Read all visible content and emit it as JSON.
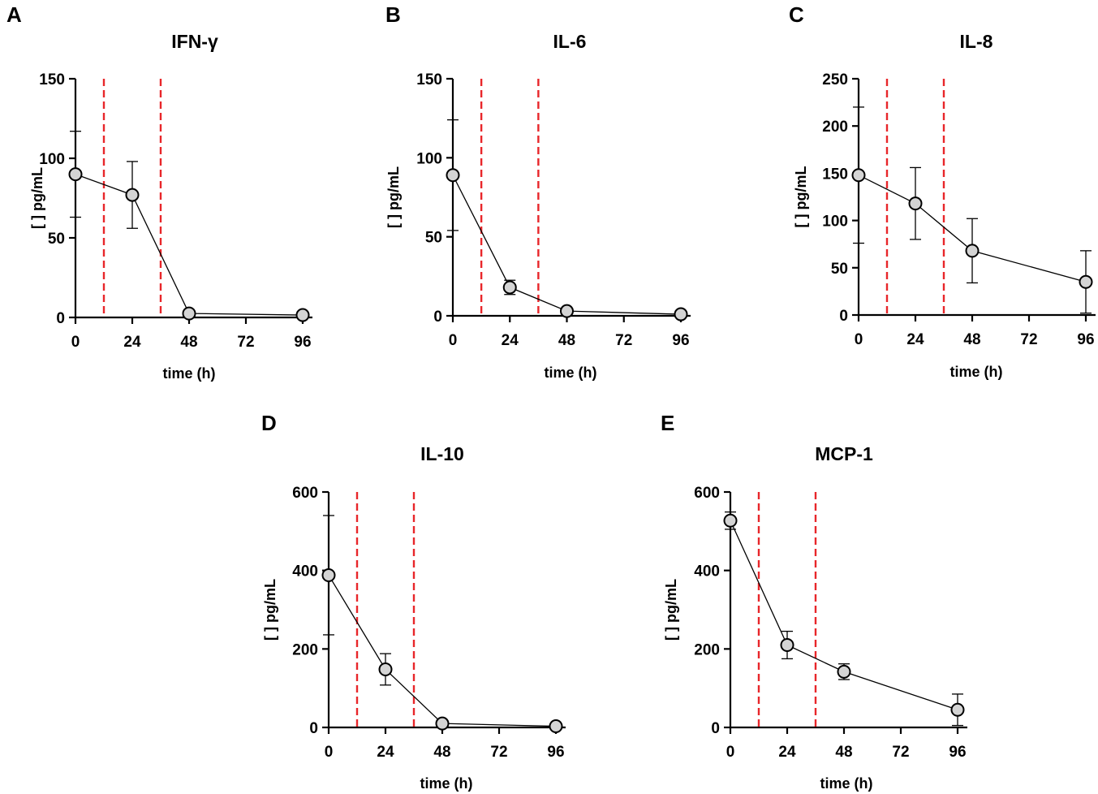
{
  "figure": {
    "colors": {
      "refline": "#e8262a",
      "marker_fill": "#d4d4d4",
      "ink": "#000000"
    }
  },
  "chart_data": [
    {
      "panel": "A",
      "type": "line",
      "title": "IFN-γ",
      "xlabel": "time (h)",
      "ylabel": "[ ] pg/mL",
      "xlim": [
        0,
        96
      ],
      "ylim": [
        0,
        150
      ],
      "xticks": [
        0,
        24,
        48,
        72,
        96
      ],
      "yticks": [
        0,
        50,
        100,
        150
      ],
      "reference_lines_x": [
        12,
        36
      ],
      "series": [
        {
          "name": "IFN-γ",
          "x": [
            0,
            24,
            48,
            96
          ],
          "y": [
            90,
            77,
            2.5,
            1.5
          ],
          "err": [
            27,
            21,
            0.5,
            0.5
          ]
        }
      ]
    },
    {
      "panel": "B",
      "type": "line",
      "title": "IL-6",
      "xlabel": "time (h)",
      "ylabel": "[ ] pg/mL",
      "xlim": [
        0,
        96
      ],
      "ylim": [
        0,
        150
      ],
      "xticks": [
        0,
        24,
        48,
        72,
        96
      ],
      "yticks": [
        0,
        50,
        100,
        150
      ],
      "reference_lines_x": [
        12,
        36
      ],
      "series": [
        {
          "name": "IL-6",
          "x": [
            0,
            24,
            48,
            96
          ],
          "y": [
            89,
            18,
            3,
            1
          ],
          "err": [
            35,
            4.5,
            0.5,
            0.5
          ]
        }
      ]
    },
    {
      "panel": "C",
      "type": "line",
      "title": "IL-8",
      "xlabel": "time (h)",
      "ylabel": "[ ] pg/mL",
      "xlim": [
        0,
        96
      ],
      "ylim": [
        0,
        250
      ],
      "xticks": [
        0,
        24,
        48,
        72,
        96
      ],
      "yticks": [
        0,
        50,
        100,
        150,
        200,
        250
      ],
      "reference_lines_x": [
        12,
        36
      ],
      "series": [
        {
          "name": "IL-8",
          "x": [
            0,
            24,
            48,
            96
          ],
          "y": [
            148,
            118,
            68,
            35
          ],
          "err": [
            72,
            38,
            34,
            33
          ]
        }
      ]
    },
    {
      "panel": "D",
      "type": "line",
      "title": "IL-10",
      "xlabel": "time (h)",
      "ylabel": "[ ] pg/mL",
      "xlim": [
        0,
        96
      ],
      "ylim": [
        0,
        600
      ],
      "xticks": [
        0,
        24,
        48,
        72,
        96
      ],
      "yticks": [
        0,
        200,
        400,
        600
      ],
      "reference_lines_x": [
        12,
        36
      ],
      "series": [
        {
          "name": "IL-10",
          "x": [
            0,
            24,
            48,
            96
          ],
          "y": [
            388,
            148,
            10,
            3
          ],
          "err": [
            152,
            40,
            4,
            1
          ]
        }
      ]
    },
    {
      "panel": "E",
      "type": "line",
      "title": "MCP-1",
      "xlabel": "time (h)",
      "ylabel": "[ ] pg/mL",
      "xlim": [
        0,
        96
      ],
      "ylim": [
        0,
        600
      ],
      "xticks": [
        0,
        24,
        48,
        72,
        96
      ],
      "yticks": [
        0,
        200,
        400,
        600
      ],
      "reference_lines_x": [
        12,
        36
      ],
      "series": [
        {
          "name": "MCP-1",
          "x": [
            0,
            24,
            48,
            96
          ],
          "y": [
            527,
            210,
            142,
            45
          ],
          "err": [
            22,
            35,
            20,
            40
          ]
        }
      ]
    }
  ]
}
